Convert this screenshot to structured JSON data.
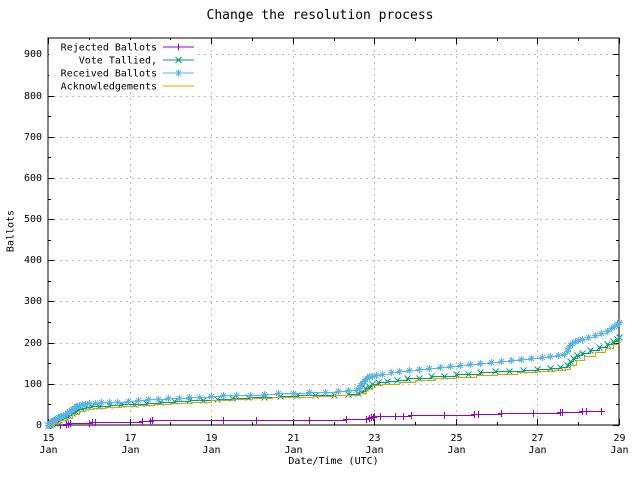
{
  "chart_data": {
    "type": "line",
    "title": "Change the resolution process",
    "xlabel": "Date/Time (UTC)",
    "ylabel": "Ballots",
    "xlim": [
      15,
      29
    ],
    "ylim": [
      0,
      940
    ],
    "grid": true,
    "legend_position": "top-left-inside",
    "colors": {
      "frame": "#000000",
      "grid": "#bbbbbb",
      "background": "#ffffff"
    },
    "yticks": {
      "major": [
        0,
        100,
        200,
        300,
        400,
        500,
        600,
        700,
        800,
        900
      ],
      "minor_step": 50
    },
    "xticks": {
      "major_days": [
        15,
        17,
        19,
        21,
        23,
        25,
        27,
        29
      ],
      "minor_days": [
        16,
        18,
        20,
        22,
        24,
        26,
        28
      ],
      "month_label": "Jan"
    },
    "series": [
      {
        "name": "Rejected Ballots",
        "color": "#9400d3",
        "marker": "plus",
        "points": [
          [
            15.05,
            0
          ],
          [
            15.3,
            1
          ],
          [
            15.45,
            2
          ],
          [
            15.5,
            3
          ],
          [
            15.55,
            4
          ],
          [
            16.0,
            6
          ],
          [
            16.08,
            7
          ],
          [
            16.15,
            8
          ],
          [
            17.3,
            9
          ],
          [
            17.5,
            10
          ],
          [
            17.55,
            11
          ],
          [
            19.3,
            12
          ],
          [
            20.1,
            12
          ],
          [
            21.4,
            13
          ],
          [
            22.3,
            14
          ],
          [
            22.8,
            15
          ],
          [
            22.88,
            17
          ],
          [
            22.92,
            19
          ],
          [
            22.96,
            20
          ],
          [
            23.0,
            21
          ],
          [
            23.15,
            22
          ],
          [
            23.5,
            23
          ],
          [
            23.7,
            23
          ],
          [
            23.9,
            24
          ],
          [
            24.7,
            25
          ],
          [
            25.45,
            26
          ],
          [
            25.55,
            27
          ],
          [
            26.1,
            28
          ],
          [
            26.9,
            29
          ],
          [
            27.55,
            31
          ],
          [
            27.6,
            32
          ],
          [
            28.1,
            33
          ],
          [
            28.18,
            34
          ],
          [
            28.55,
            35
          ]
        ]
      },
      {
        "name": "Vote Tallied,",
        "color": "#009e73",
        "marker": "cross",
        "points": [
          [
            15.0,
            0
          ],
          [
            15.05,
            1
          ],
          [
            15.1,
            3
          ],
          [
            15.16,
            6
          ],
          [
            15.22,
            9
          ],
          [
            15.28,
            12
          ],
          [
            15.35,
            16
          ],
          [
            15.42,
            20
          ],
          [
            15.5,
            24
          ],
          [
            15.58,
            29
          ],
          [
            15.65,
            34
          ],
          [
            15.72,
            38
          ],
          [
            15.8,
            41
          ],
          [
            15.9,
            43
          ],
          [
            16.05,
            45
          ],
          [
            16.25,
            47
          ],
          [
            16.5,
            49
          ],
          [
            16.8,
            51
          ],
          [
            17.1,
            52
          ],
          [
            17.4,
            54
          ],
          [
            17.75,
            56
          ],
          [
            18.1,
            58
          ],
          [
            18.45,
            60
          ],
          [
            18.8,
            61
          ],
          [
            19.15,
            63
          ],
          [
            19.5,
            65
          ],
          [
            19.9,
            67
          ],
          [
            20.3,
            69
          ],
          [
            20.7,
            70
          ],
          [
            21.1,
            72
          ],
          [
            21.55,
            73
          ],
          [
            22.0,
            74
          ],
          [
            22.35,
            75
          ],
          [
            22.6,
            77
          ],
          [
            22.7,
            83
          ],
          [
            22.78,
            89
          ],
          [
            22.86,
            95
          ],
          [
            22.95,
            100
          ],
          [
            23.1,
            104
          ],
          [
            23.3,
            107
          ],
          [
            23.55,
            110
          ],
          [
            23.8,
            113
          ],
          [
            24.1,
            115
          ],
          [
            24.4,
            118
          ],
          [
            24.7,
            120
          ],
          [
            25.0,
            123
          ],
          [
            25.3,
            125
          ],
          [
            25.6,
            128
          ],
          [
            25.95,
            130
          ],
          [
            26.3,
            132
          ],
          [
            26.65,
            134
          ],
          [
            27.0,
            136
          ],
          [
            27.3,
            138
          ],
          [
            27.55,
            140
          ],
          [
            27.72,
            145
          ],
          [
            27.8,
            155
          ],
          [
            27.88,
            163
          ],
          [
            27.96,
            170
          ],
          [
            28.1,
            176
          ],
          [
            28.3,
            182
          ],
          [
            28.5,
            189
          ],
          [
            28.7,
            196
          ],
          [
            28.85,
            203
          ],
          [
            28.95,
            209
          ],
          [
            29.0,
            214
          ]
        ]
      },
      {
        "name": "Received Ballots",
        "color": "#56b4e9",
        "marker": "asterisk",
        "points": [
          [
            15.0,
            0
          ],
          [
            15.02,
            1
          ],
          [
            15.04,
            3
          ],
          [
            15.06,
            5
          ],
          [
            15.08,
            7
          ],
          [
            15.1,
            9
          ],
          [
            15.12,
            11
          ],
          [
            15.15,
            13
          ],
          [
            15.18,
            15
          ],
          [
            15.21,
            17
          ],
          [
            15.25,
            19
          ],
          [
            15.29,
            21
          ],
          [
            15.33,
            23
          ],
          [
            15.37,
            25
          ],
          [
            15.42,
            27
          ],
          [
            15.47,
            30
          ],
          [
            15.52,
            33
          ],
          [
            15.56,
            36
          ],
          [
            15.6,
            39
          ],
          [
            15.64,
            42
          ],
          [
            15.68,
            45
          ],
          [
            15.72,
            47
          ],
          [
            15.77,
            49
          ],
          [
            15.83,
            51
          ],
          [
            15.9,
            52
          ],
          [
            16.0,
            53
          ],
          [
            16.15,
            54
          ],
          [
            16.3,
            55
          ],
          [
            16.5,
            56
          ],
          [
            16.7,
            57
          ],
          [
            16.95,
            58
          ],
          [
            17.2,
            60
          ],
          [
            17.45,
            62
          ],
          [
            17.7,
            63
          ],
          [
            17.95,
            65
          ],
          [
            18.2,
            66
          ],
          [
            18.45,
            68
          ],
          [
            18.7,
            69
          ],
          [
            19.0,
            71
          ],
          [
            19.3,
            72
          ],
          [
            19.6,
            73
          ],
          [
            19.95,
            74
          ],
          [
            20.3,
            76
          ],
          [
            20.65,
            77
          ],
          [
            21.0,
            78
          ],
          [
            21.4,
            79
          ],
          [
            21.8,
            80
          ],
          [
            22.1,
            82
          ],
          [
            22.35,
            84
          ],
          [
            22.55,
            86
          ],
          [
            22.62,
            90
          ],
          [
            22.66,
            96
          ],
          [
            22.7,
            102
          ],
          [
            22.74,
            108
          ],
          [
            22.78,
            112
          ],
          [
            22.82,
            115
          ],
          [
            22.88,
            118
          ],
          [
            22.95,
            120
          ],
          [
            23.05,
            122
          ],
          [
            23.2,
            125
          ],
          [
            23.4,
            128
          ],
          [
            23.6,
            131
          ],
          [
            23.85,
            134
          ],
          [
            24.1,
            136
          ],
          [
            24.35,
            139
          ],
          [
            24.6,
            141
          ],
          [
            24.85,
            143
          ],
          [
            25.1,
            146
          ],
          [
            25.35,
            148
          ],
          [
            25.6,
            151
          ],
          [
            25.85,
            153
          ],
          [
            26.1,
            156
          ],
          [
            26.35,
            158
          ],
          [
            26.6,
            161
          ],
          [
            26.85,
            163
          ],
          [
            27.1,
            166
          ],
          [
            27.3,
            168
          ],
          [
            27.5,
            170
          ],
          [
            27.65,
            173
          ],
          [
            27.72,
            180
          ],
          [
            27.76,
            188
          ],
          [
            27.8,
            194
          ],
          [
            27.85,
            199
          ],
          [
            27.92,
            203
          ],
          [
            28.0,
            207
          ],
          [
            28.1,
            210
          ],
          [
            28.25,
            214
          ],
          [
            28.4,
            218
          ],
          [
            28.55,
            223
          ],
          [
            28.7,
            229
          ],
          [
            28.8,
            235
          ],
          [
            28.88,
            241
          ],
          [
            28.95,
            246
          ],
          [
            29.0,
            250
          ]
        ]
      },
      {
        "name": "Acknowledgements",
        "color": "#e69f00",
        "marker": "none",
        "points": [
          [
            15.0,
            0
          ],
          [
            15.15,
            5
          ],
          [
            15.3,
            11
          ],
          [
            15.45,
            18
          ],
          [
            15.6,
            27
          ],
          [
            15.75,
            35
          ],
          [
            15.9,
            39
          ],
          [
            16.1,
            42
          ],
          [
            16.4,
            44
          ],
          [
            16.8,
            46
          ],
          [
            17.2,
            49
          ],
          [
            17.6,
            52
          ],
          [
            18.0,
            54
          ],
          [
            18.5,
            57
          ],
          [
            19.0,
            60
          ],
          [
            19.5,
            62
          ],
          [
            20.0,
            65
          ],
          [
            20.5,
            67
          ],
          [
            21.0,
            69
          ],
          [
            21.5,
            71
          ],
          [
            22.0,
            72
          ],
          [
            22.4,
            73
          ],
          [
            22.65,
            78
          ],
          [
            22.8,
            88
          ],
          [
            22.95,
            96
          ],
          [
            23.2,
            100
          ],
          [
            23.6,
            105
          ],
          [
            24.0,
            109
          ],
          [
            24.5,
            113
          ],
          [
            25.0,
            117
          ],
          [
            25.5,
            121
          ],
          [
            26.0,
            125
          ],
          [
            26.5,
            128
          ],
          [
            27.0,
            131
          ],
          [
            27.4,
            134
          ],
          [
            27.68,
            136
          ],
          [
            27.8,
            146
          ],
          [
            27.95,
            158
          ],
          [
            28.15,
            168
          ],
          [
            28.4,
            178
          ],
          [
            28.65,
            188
          ],
          [
            28.85,
            197
          ],
          [
            29.0,
            207
          ]
        ]
      }
    ]
  }
}
